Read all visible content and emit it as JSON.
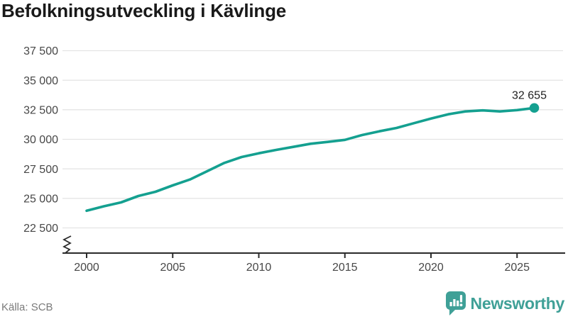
{
  "title": "Befolkningsutveckling i Kävlinge",
  "source": "Källa: SCB",
  "logo": {
    "wordmark": "Newsworthy",
    "icon": "bar-chart-speech-bubble"
  },
  "colors": {
    "line": "#14A090",
    "title": "#191919",
    "tick_label": "#474747",
    "gridline": "#E4E4E4",
    "axis": "#2B2B2B",
    "source": "#7A7A7A",
    "logo": "#3FA097",
    "end_label": "#1E1E1E",
    "logo_bars": "#FFFFFF"
  },
  "chart_data": {
    "type": "line",
    "title": "Befolkningsutveckling i Kävlinge",
    "xlabel": "",
    "ylabel": "",
    "x": [
      2000,
      2001,
      2002,
      2003,
      2004,
      2005,
      2006,
      2007,
      2008,
      2009,
      2010,
      2011,
      2012,
      2013,
      2014,
      2015,
      2016,
      2017,
      2018,
      2019,
      2020,
      2021,
      2022,
      2023,
      2024,
      2025,
      2026
    ],
    "values": [
      23950,
      24330,
      24660,
      25200,
      25560,
      26100,
      26600,
      27300,
      28000,
      28500,
      28820,
      29100,
      29360,
      29620,
      29780,
      29950,
      30360,
      30680,
      30960,
      31360,
      31750,
      32120,
      32360,
      32450,
      32360,
      32470,
      32655
    ],
    "end_value": 32655,
    "end_label": "32 655",
    "x_range": [
      2000,
      2026
    ],
    "ylim": [
      22500,
      37500
    ],
    "yticks": [
      37500,
      35000,
      32500,
      30000,
      27500,
      25000,
      22500
    ],
    "ytick_labels": [
      "37 500",
      "35 000",
      "32 500",
      "30 000",
      "27 500",
      "25 000",
      "22 500"
    ],
    "xticks": [
      2000,
      2005,
      2010,
      2015,
      2020,
      2025
    ],
    "xtick_labels": [
      "2000",
      "2005",
      "2010",
      "2015",
      "2020",
      "2025"
    ],
    "grid": true,
    "axis_break": true,
    "legend": "none"
  }
}
